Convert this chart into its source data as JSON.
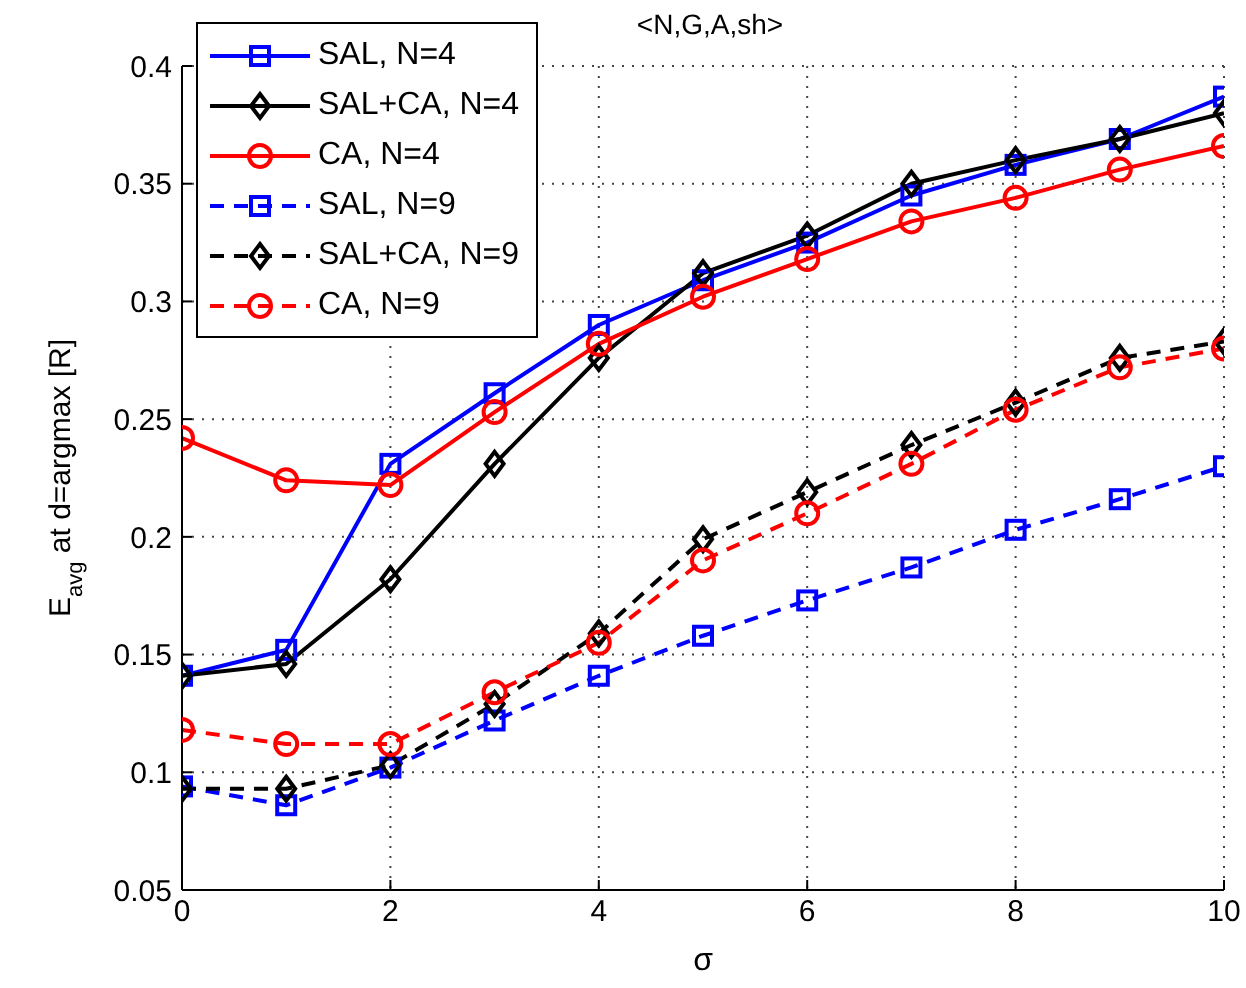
{
  "chart_data": {
    "type": "line",
    "title": "<N,G,A,sh>",
    "xlabel": "σ",
    "ylabel": "E$_{avg}$ at d=argmax [R]",
    "x": [
      0,
      1,
      2,
      3,
      4,
      5,
      6,
      7,
      8,
      9,
      10
    ],
    "xlim": [
      0,
      10
    ],
    "xticks": [
      0,
      2,
      4,
      6,
      8,
      10
    ],
    "ylim": [
      0.05,
      0.4
    ],
    "yticks": [
      0.05,
      0.1,
      0.15,
      0.2,
      0.25,
      0.3,
      0.35,
      0.4
    ],
    "grid": true,
    "legend": "top left",
    "series": [
      {
        "name": "SAL, N=4",
        "color": "#0000ff",
        "marker": "square",
        "line_style": "solid",
        "values": [
          0.141,
          0.152,
          0.231,
          0.261,
          0.29,
          0.309,
          0.325,
          0.345,
          0.358,
          0.369,
          0.387
        ]
      },
      {
        "name": "SAL+CA, N=4",
        "color": "#000000",
        "marker": "diamond",
        "line_style": "solid",
        "values": [
          0.141,
          0.146,
          0.182,
          0.231,
          0.276,
          0.312,
          0.328,
          0.35,
          0.36,
          0.369,
          0.38
        ]
      },
      {
        "name": "CA, N=4",
        "color": "#ff0000",
        "marker": "circle",
        "line_style": "solid",
        "values": [
          0.242,
          0.224,
          0.222,
          0.253,
          0.282,
          0.302,
          0.318,
          0.334,
          0.344,
          0.356,
          0.366
        ]
      },
      {
        "name": "SAL, N=9",
        "color": "#0000ff",
        "marker": "square",
        "line_style": "dashed",
        "values": [
          0.094,
          0.086,
          0.102,
          0.122,
          0.141,
          0.158,
          0.173,
          0.187,
          0.203,
          0.216,
          0.23
        ]
      },
      {
        "name": "SAL+CA, N=9",
        "color": "#000000",
        "marker": "diamond",
        "line_style": "dashed",
        "values": [
          0.093,
          0.093,
          0.103,
          0.129,
          0.159,
          0.199,
          0.219,
          0.239,
          0.257,
          0.276,
          0.283
        ]
      },
      {
        "name": "CA, N=9",
        "color": "#ff0000",
        "marker": "circle",
        "line_style": "dashed",
        "values": [
          0.118,
          0.112,
          0.112,
          0.134,
          0.155,
          0.19,
          0.21,
          0.231,
          0.254,
          0.272,
          0.28
        ]
      }
    ]
  }
}
